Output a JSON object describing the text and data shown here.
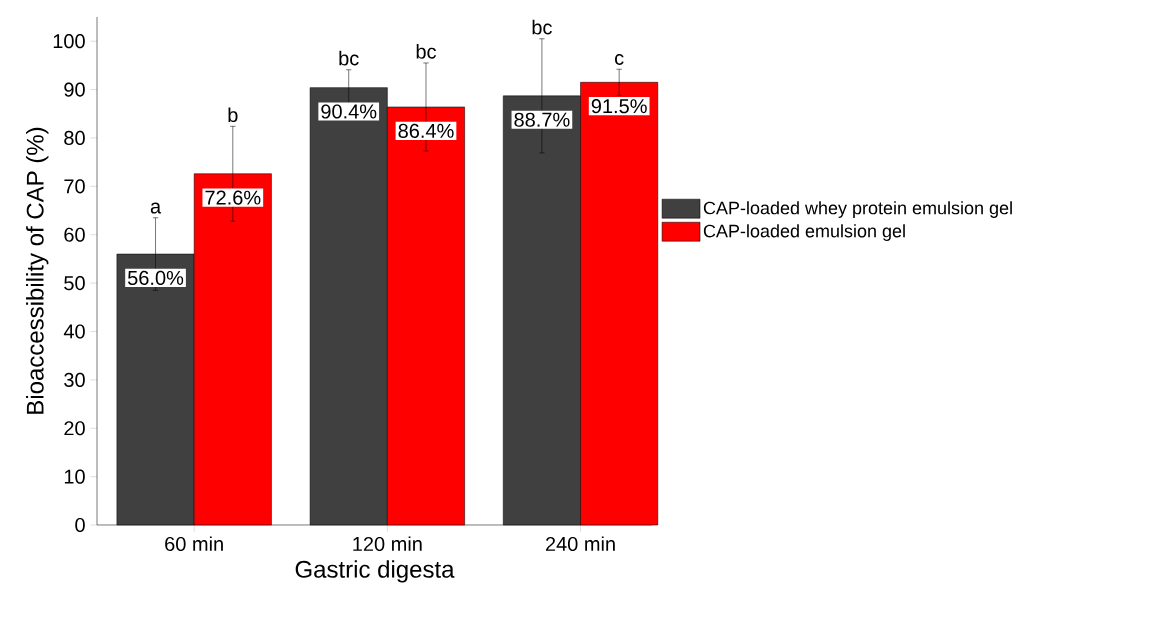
{
  "chart_data": {
    "type": "bar",
    "xlabel": "Gastric digesta",
    "ylabel": "Bioaccessibility of CAP (%)",
    "categories": [
      "60 min",
      "120 min",
      "240 min"
    ],
    "series": [
      {
        "name": "CAP-loaded whey protein emulsion gel",
        "color": "#404040",
        "values": [
          56.0,
          90.4,
          88.7
        ],
        "errors": [
          7.5,
          3.7,
          11.8
        ],
        "value_labels": [
          "56.0%",
          "90.4%",
          "88.7%"
        ]
      },
      {
        "name": "CAP-loaded emulsion gel",
        "color": "#ff0000",
        "values": [
          72.6,
          86.4,
          91.5
        ],
        "errors": [
          9.8,
          9.1,
          2.7
        ],
        "value_labels": [
          "72.6%",
          "86.4%",
          "91.5%"
        ]
      }
    ],
    "annotations": [
      "a",
      "b",
      "bc",
      "bc",
      "bc",
      "c"
    ],
    "ylim": [
      0,
      105
    ],
    "yticks": [
      0,
      10,
      20,
      30,
      40,
      50,
      60,
      70,
      80,
      90,
      100
    ],
    "legend": "right"
  }
}
